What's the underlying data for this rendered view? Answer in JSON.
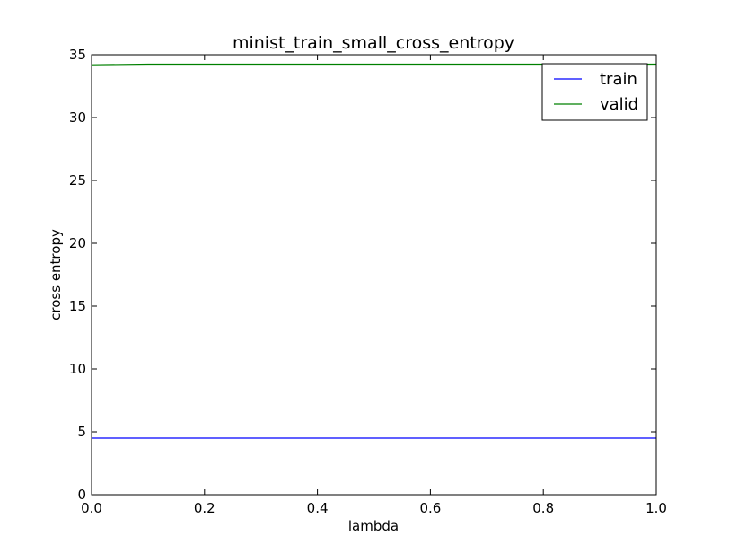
{
  "chart_data": {
    "type": "line",
    "title": "minist_train_small_cross_entropy",
    "xlabel": "lambda",
    "ylabel": "cross entropy",
    "xlim": [
      0.0,
      1.0
    ],
    "ylim": [
      0,
      35
    ],
    "xticks": [
      0.0,
      0.2,
      0.4,
      0.6,
      0.8,
      1.0
    ],
    "xtick_labels": [
      "0.0",
      "0.2",
      "0.4",
      "0.6",
      "0.8",
      "1.0"
    ],
    "yticks": [
      0,
      5,
      10,
      15,
      20,
      25,
      30,
      35
    ],
    "ytick_labels": [
      "0",
      "5",
      "10",
      "15",
      "20",
      "25",
      "30",
      "35"
    ],
    "grid": false,
    "legend_position": "top-right",
    "x": [
      0.0,
      0.1,
      0.2,
      0.3,
      0.4,
      0.5,
      0.6,
      0.7,
      0.8,
      0.9,
      1.0
    ],
    "series": [
      {
        "name": "train",
        "color": "#0000ff",
        "values": [
          4.5,
          4.5,
          4.5,
          4.5,
          4.5,
          4.5,
          4.5,
          4.5,
          4.5,
          4.5,
          4.5
        ]
      },
      {
        "name": "valid",
        "color": "#008000",
        "values": [
          34.2,
          34.25,
          34.25,
          34.25,
          34.25,
          34.25,
          34.25,
          34.25,
          34.25,
          34.25,
          34.25
        ]
      }
    ]
  }
}
